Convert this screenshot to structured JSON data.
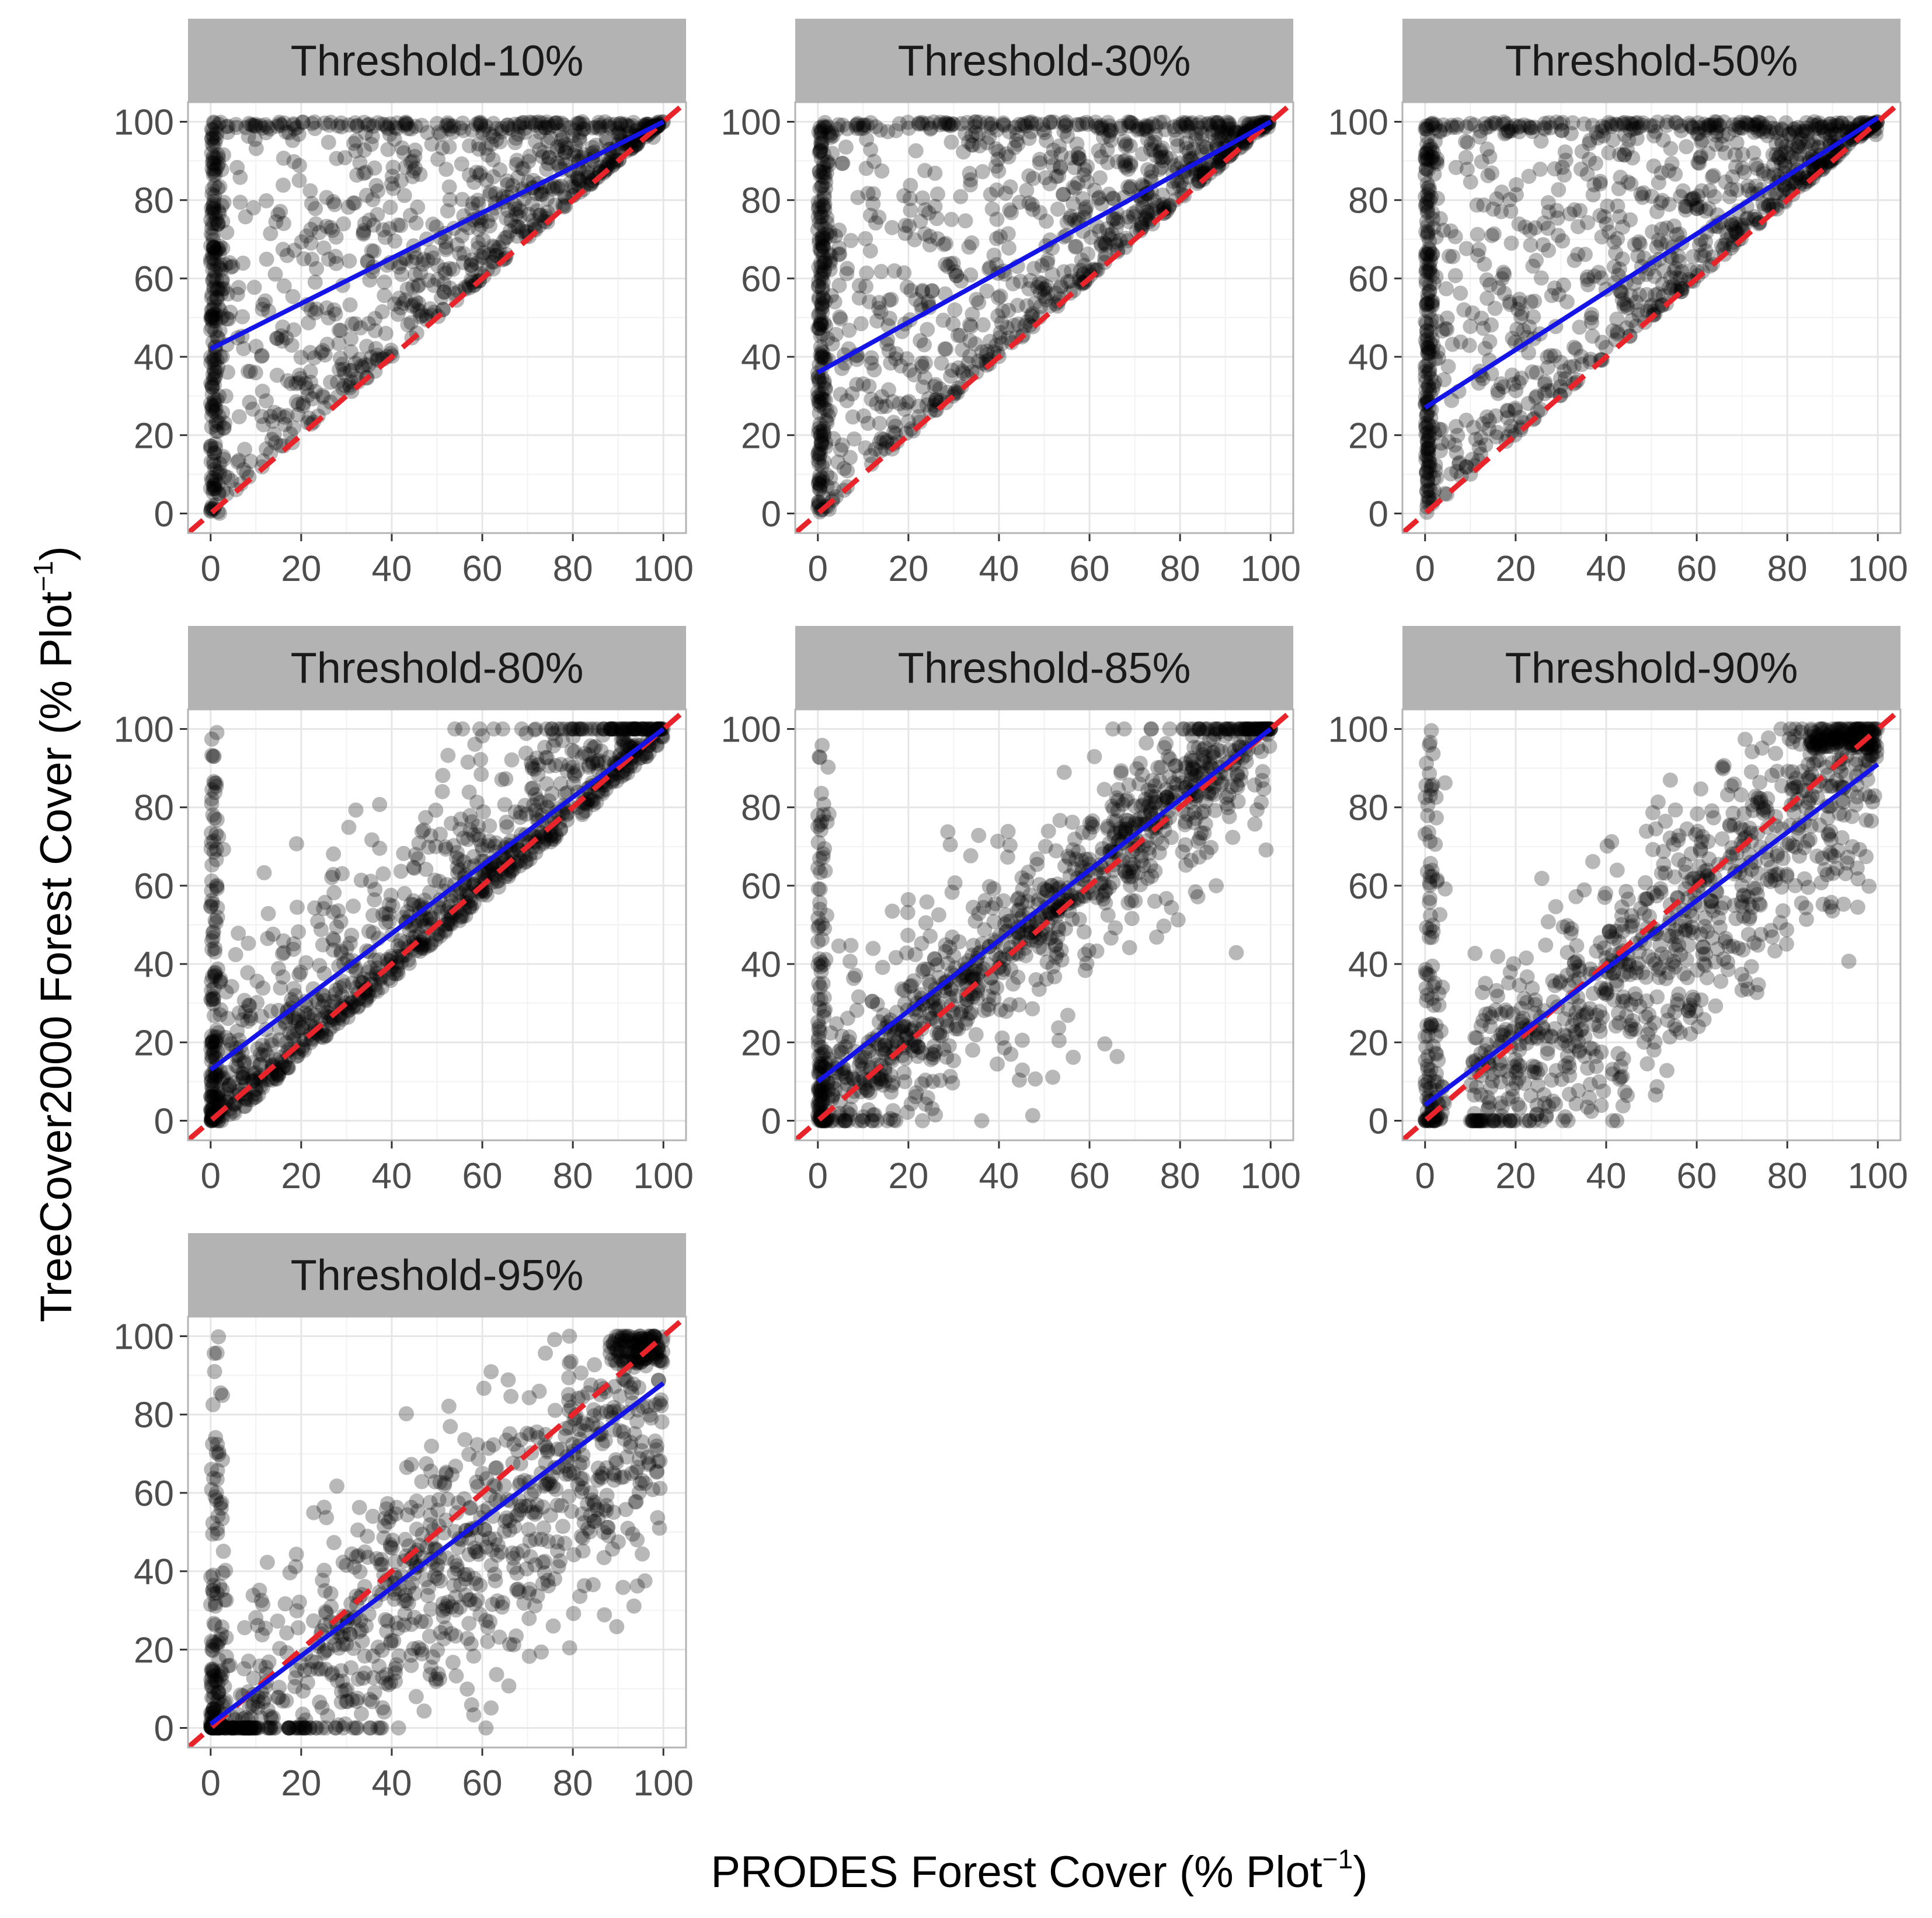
{
  "figure": {
    "xlabel": "PRODES Forest Cover (% Plot",
    "xlabel_sup": "−1",
    "xlabel_end": ")",
    "ylabel": "TreeCover2000 Forest Cover (% Plot",
    "ylabel_sup": "−1",
    "ylabel_end": ")"
  },
  "chart_data": [
    {
      "type": "scatter",
      "title": "Threshold-10%",
      "xlim": [
        0,
        100
      ],
      "ylim": [
        0,
        100
      ],
      "x_ticks": [
        0,
        20,
        40,
        60,
        80,
        100
      ],
      "y_ticks": [
        0,
        20,
        40,
        60,
        80,
        100
      ],
      "fit_line": {
        "intercept": 42,
        "slope": 0.58
      },
      "identity_line": {
        "intercept": 0,
        "slope": 1
      },
      "pattern": "upper-triangle"
    },
    {
      "type": "scatter",
      "title": "Threshold-30%",
      "xlim": [
        0,
        100
      ],
      "ylim": [
        0,
        100
      ],
      "x_ticks": [
        0,
        20,
        40,
        60,
        80,
        100
      ],
      "y_ticks": [
        0,
        20,
        40,
        60,
        80,
        100
      ],
      "fit_line": {
        "intercept": 36,
        "slope": 0.64
      },
      "identity_line": {
        "intercept": 0,
        "slope": 1
      },
      "pattern": "upper-triangle"
    },
    {
      "type": "scatter",
      "title": "Threshold-50%",
      "xlim": [
        0,
        100
      ],
      "ylim": [
        0,
        100
      ],
      "x_ticks": [
        0,
        20,
        40,
        60,
        80,
        100
      ],
      "y_ticks": [
        0,
        20,
        40,
        60,
        80,
        100
      ],
      "fit_line": {
        "intercept": 27,
        "slope": 0.74
      },
      "identity_line": {
        "intercept": 0,
        "slope": 1
      },
      "pattern": "upper-triangle"
    },
    {
      "type": "scatter",
      "title": "Threshold-80%",
      "xlim": [
        0,
        100
      ],
      "ylim": [
        0,
        100
      ],
      "x_ticks": [
        0,
        20,
        40,
        60,
        80,
        100
      ],
      "y_ticks": [
        0,
        20,
        40,
        60,
        80,
        100
      ],
      "fit_line": {
        "intercept": 13,
        "slope": 0.87
      },
      "identity_line": {
        "intercept": 0,
        "slope": 1
      },
      "pattern": "diagonal-upper"
    },
    {
      "type": "scatter",
      "title": "Threshold-85%",
      "xlim": [
        0,
        100
      ],
      "ylim": [
        0,
        100
      ],
      "x_ticks": [
        0,
        20,
        40,
        60,
        80,
        100
      ],
      "y_ticks": [
        0,
        20,
        40,
        60,
        80,
        100
      ],
      "fit_line": {
        "intercept": 10,
        "slope": 0.9
      },
      "identity_line": {
        "intercept": 0,
        "slope": 1
      },
      "pattern": "diagonal"
    },
    {
      "type": "scatter",
      "title": "Threshold-90%",
      "xlim": [
        0,
        100
      ],
      "ylim": [
        0,
        100
      ],
      "x_ticks": [
        0,
        20,
        40,
        60,
        80,
        100
      ],
      "y_ticks": [
        0,
        20,
        40,
        60,
        80,
        100
      ],
      "fit_line": {
        "intercept": 4,
        "slope": 0.87
      },
      "identity_line": {
        "intercept": 0,
        "slope": 1
      },
      "pattern": "diagonal-spread"
    },
    {
      "type": "scatter",
      "title": "Threshold-95%",
      "xlim": [
        0,
        100
      ],
      "ylim": [
        0,
        100
      ],
      "x_ticks": [
        0,
        20,
        40,
        60,
        80,
        100
      ],
      "y_ticks": [
        0,
        20,
        40,
        60,
        80,
        100
      ],
      "fit_line": {
        "intercept": 1,
        "slope": 0.87
      },
      "identity_line": {
        "intercept": 0,
        "slope": 1
      },
      "pattern": "lower-spread"
    }
  ],
  "colors": {
    "points": "#000000",
    "fit_line": "#1414e6",
    "identity_line": "#e8232a",
    "strip_bg": "#b3b3b3",
    "panel_border": "#b3b3b3",
    "grid": "#e6e6e6"
  }
}
